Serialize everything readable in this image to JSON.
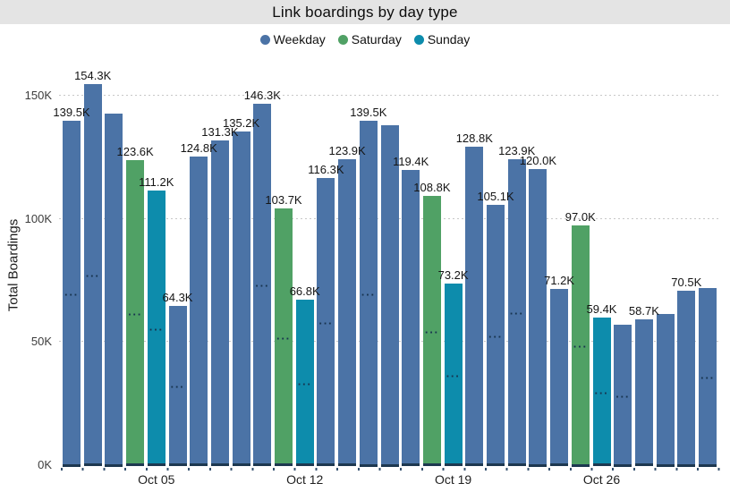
{
  "title": "Link boardings by day type",
  "legend": [
    {
      "label": "Weekday",
      "type": "weekday"
    },
    {
      "label": "Saturday",
      "type": "saturday"
    },
    {
      "label": "Sunday",
      "type": "sunday"
    }
  ],
  "y_axis": {
    "title": "Total Boardings"
  },
  "chart_data": {
    "type": "bar",
    "title": "Link boardings by day type",
    "xlabel": "",
    "ylabel": "Total Boardings",
    "ylim": [
      0,
      160
    ],
    "unit": "thousands of boardings",
    "grid": "dotted horizontal gridlines at 50K steps",
    "legend_position": "top center",
    "colors": {
      "weekday": "#4b73a6",
      "saturday": "#50a165",
      "sunday": "#0d8cac"
    },
    "axis_color": "#1d3850",
    "inner_dots_glyph": "···",
    "y_ticks": [
      {
        "label": "0K",
        "value": 0
      },
      {
        "label": "50K",
        "value": 50
      },
      {
        "label": "100K",
        "value": 100
      },
      {
        "label": "150K",
        "value": 150
      }
    ],
    "x_axis_ticks": [
      {
        "label": "Oct 05",
        "index": 4
      },
      {
        "label": "Oct 12",
        "index": 11
      },
      {
        "label": "Oct 19",
        "index": 18
      },
      {
        "label": "Oct 26",
        "index": 25
      }
    ],
    "points": [
      {
        "date": "Oct 01",
        "type": "weekday",
        "value": 139.5,
        "label": "139.5K",
        "inner_dots": true,
        "estimated": false
      },
      {
        "date": "Oct 02",
        "type": "weekday",
        "value": 154.3,
        "label": "154.3K",
        "inner_dots": true,
        "estimated": false
      },
      {
        "date": "Oct 03",
        "type": "weekday",
        "value": 142.5,
        "label": null,
        "inner_dots": false,
        "estimated": true
      },
      {
        "date": "Oct 04",
        "type": "saturday",
        "value": 123.6,
        "label": "123.6K",
        "inner_dots": true,
        "estimated": false
      },
      {
        "date": "Oct 05",
        "type": "sunday",
        "value": 111.2,
        "label": "111.2K",
        "inner_dots": true,
        "estimated": false
      },
      {
        "date": "Oct 06",
        "type": "weekday",
        "value": 64.3,
        "label": "64.3K",
        "inner_dots": true,
        "estimated": false
      },
      {
        "date": "Oct 07",
        "type": "weekday",
        "value": 124.8,
        "label": "124.8K",
        "inner_dots": false,
        "estimated": false
      },
      {
        "date": "Oct 08",
        "type": "weekday",
        "value": 131.3,
        "label": "131.3K",
        "inner_dots": false,
        "estimated": false
      },
      {
        "date": "Oct 09",
        "type": "weekday",
        "value": 135.2,
        "label": "135.2K",
        "inner_dots": false,
        "estimated": false
      },
      {
        "date": "Oct 10",
        "type": "weekday",
        "value": 146.3,
        "label": "146.3K",
        "inner_dots": true,
        "estimated": false
      },
      {
        "date": "Oct 11",
        "type": "saturday",
        "value": 103.7,
        "label": "103.7K",
        "inner_dots": true,
        "estimated": false
      },
      {
        "date": "Oct 12",
        "type": "sunday",
        "value": 66.8,
        "label": "66.8K",
        "inner_dots": true,
        "estimated": false
      },
      {
        "date": "Oct 13",
        "type": "weekday",
        "value": 116.3,
        "label": "116.3K",
        "inner_dots": true,
        "estimated": false
      },
      {
        "date": "Oct 14",
        "type": "weekday",
        "value": 123.9,
        "label": "123.9K",
        "inner_dots": false,
        "estimated": false
      },
      {
        "date": "Oct 15",
        "type": "weekday",
        "value": 139.5,
        "label": "139.5K",
        "inner_dots": true,
        "estimated": false
      },
      {
        "date": "Oct 16",
        "type": "weekday",
        "value": 137.5,
        "label": null,
        "inner_dots": false,
        "estimated": true
      },
      {
        "date": "Oct 17",
        "type": "weekday",
        "value": 119.4,
        "label": "119.4K",
        "inner_dots": false,
        "estimated": false
      },
      {
        "date": "Oct 18",
        "type": "saturday",
        "value": 108.8,
        "label": "108.8K",
        "inner_dots": true,
        "estimated": false
      },
      {
        "date": "Oct 19",
        "type": "sunday",
        "value": 73.2,
        "label": "73.2K",
        "inner_dots": true,
        "estimated": false
      },
      {
        "date": "Oct 20",
        "type": "weekday",
        "value": 128.8,
        "label": "128.8K",
        "inner_dots": false,
        "estimated": false
      },
      {
        "date": "Oct 21",
        "type": "weekday",
        "value": 105.1,
        "label": "105.1K",
        "inner_dots": true,
        "estimated": false
      },
      {
        "date": "Oct 22",
        "type": "weekday",
        "value": 123.9,
        "label": "123.9K",
        "inner_dots": true,
        "estimated": false
      },
      {
        "date": "Oct 23",
        "type": "weekday",
        "value": 120.0,
        "label": "120.0K",
        "inner_dots": false,
        "estimated": false
      },
      {
        "date": "Oct 24",
        "type": "weekday",
        "value": 71.2,
        "label": "71.2K",
        "inner_dots": false,
        "estimated": false
      },
      {
        "date": "Oct 25",
        "type": "saturday",
        "value": 97.0,
        "label": "97.0K",
        "inner_dots": true,
        "estimated": false
      },
      {
        "date": "Oct 26",
        "type": "sunday",
        "value": 59.4,
        "label": "59.4K",
        "inner_dots": true,
        "estimated": false
      },
      {
        "date": "Oct 27",
        "type": "weekday",
        "value": 56.5,
        "label": null,
        "inner_dots": true,
        "estimated": true
      },
      {
        "date": "Oct 28",
        "type": "weekday",
        "value": 58.7,
        "label": "58.7K",
        "inner_dots": false,
        "estimated": false
      },
      {
        "date": "Oct 29",
        "type": "weekday",
        "value": 61.0,
        "label": null,
        "inner_dots": false,
        "estimated": true
      },
      {
        "date": "Oct 30",
        "type": "weekday",
        "value": 70.5,
        "label": "70.5K",
        "inner_dots": false,
        "estimated": false
      },
      {
        "date": "Oct 31",
        "type": "weekday",
        "value": 71.5,
        "label": null,
        "inner_dots": true,
        "estimated": true
      }
    ]
  }
}
